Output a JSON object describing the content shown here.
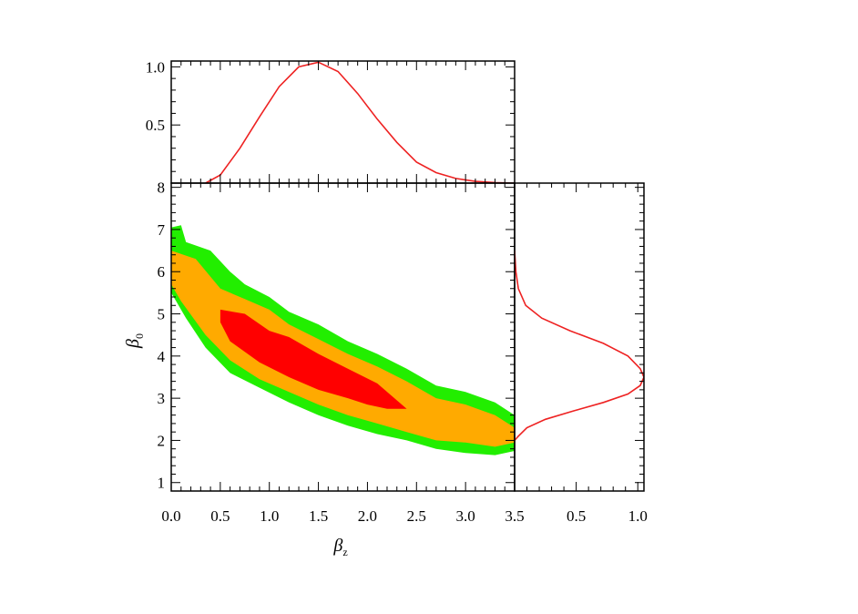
{
  "chart_data": [
    {
      "panel": "top-marginal",
      "type": "line",
      "xlim": [
        0,
        3.5
      ],
      "ylim": [
        0,
        1.05
      ],
      "yticks": [
        {
          "value": 0.5,
          "label": "0.5"
        },
        {
          "value": 1.0,
          "label": "1.0"
        }
      ],
      "series": [
        {
          "color": "#ee2222",
          "x": [
            0.35,
            0.5,
            0.7,
            0.9,
            1.1,
            1.3,
            1.5,
            1.7,
            1.9,
            2.1,
            2.3,
            2.5,
            2.7,
            2.9,
            3.1,
            3.3,
            3.5
          ],
          "y": [
            0.0,
            0.07,
            0.3,
            0.57,
            0.83,
            1.0,
            1.04,
            0.96,
            0.77,
            0.55,
            0.35,
            0.18,
            0.09,
            0.04,
            0.015,
            0.005,
            0.0
          ]
        }
      ],
      "grid": false
    },
    {
      "panel": "joint-contours",
      "type": "contour",
      "xlabel": "β",
      "xlabel_sub": "z",
      "ylabel": "β",
      "ylabel_sub": "0",
      "xlim": [
        0,
        3.5
      ],
      "ylim": [
        0.8,
        8.1
      ],
      "xticks": [
        {
          "value": 0.0,
          "label": "0.0"
        },
        {
          "value": 0.5,
          "label": "0.5"
        },
        {
          "value": 1.0,
          "label": "1.0"
        },
        {
          "value": 1.5,
          "label": "1.5"
        },
        {
          "value": 2.0,
          "label": "2.0"
        },
        {
          "value": 2.5,
          "label": "2.5"
        },
        {
          "value": 3.0,
          "label": "3.0"
        },
        {
          "value": 3.5,
          "label": "3.5"
        }
      ],
      "yticks": [
        {
          "value": 1,
          "label": "1"
        },
        {
          "value": 2,
          "label": "2"
        },
        {
          "value": 3,
          "label": "3"
        },
        {
          "value": 4,
          "label": "4"
        },
        {
          "value": 5,
          "label": "5"
        },
        {
          "value": 6,
          "label": "6"
        },
        {
          "value": 7,
          "label": "7"
        },
        {
          "value": 8,
          "label": "8"
        }
      ],
      "regions": [
        {
          "level": "outer",
          "color": "#22ee00",
          "points": [
            [
              0,
              7.05
            ],
            [
              0.1,
              7.1
            ],
            [
              0.15,
              6.7
            ],
            [
              0.4,
              6.5
            ],
            [
              0.6,
              6.0
            ],
            [
              0.75,
              5.7
            ],
            [
              1.0,
              5.4
            ],
            [
              1.2,
              5.05
            ],
            [
              1.5,
              4.75
            ],
            [
              1.8,
              4.35
            ],
            [
              2.1,
              4.05
            ],
            [
              2.4,
              3.7
            ],
            [
              2.7,
              3.3
            ],
            [
              3.0,
              3.15
            ],
            [
              3.3,
              2.9
            ],
            [
              3.5,
              2.6
            ],
            [
              3.5,
              1.75
            ],
            [
              3.3,
              1.65
            ],
            [
              3.0,
              1.7
            ],
            [
              2.7,
              1.8
            ],
            [
              2.4,
              2.0
            ],
            [
              2.1,
              2.15
            ],
            [
              1.8,
              2.35
            ],
            [
              1.5,
              2.6
            ],
            [
              1.2,
              2.9
            ],
            [
              0.9,
              3.25
            ],
            [
              0.6,
              3.6
            ],
            [
              0.35,
              4.2
            ],
            [
              0.15,
              4.9
            ],
            [
              0,
              5.5
            ]
          ]
        },
        {
          "level": "middle",
          "color": "#ffaa00",
          "points": [
            [
              0,
              6.5
            ],
            [
              0.25,
              6.3
            ],
            [
              0.5,
              5.6
            ],
            [
              0.75,
              5.35
            ],
            [
              1.0,
              5.1
            ],
            [
              1.2,
              4.75
            ],
            [
              1.5,
              4.4
            ],
            [
              1.8,
              4.05
            ],
            [
              2.1,
              3.75
            ],
            [
              2.4,
              3.4
            ],
            [
              2.7,
              3.0
            ],
            [
              3.0,
              2.85
            ],
            [
              3.3,
              2.6
            ],
            [
              3.5,
              2.3
            ],
            [
              3.5,
              1.95
            ],
            [
              3.3,
              1.85
            ],
            [
              3.0,
              1.95
            ],
            [
              2.7,
              2.0
            ],
            [
              2.4,
              2.2
            ],
            [
              2.1,
              2.4
            ],
            [
              1.8,
              2.6
            ],
            [
              1.5,
              2.85
            ],
            [
              1.2,
              3.15
            ],
            [
              0.9,
              3.45
            ],
            [
              0.6,
              3.9
            ],
            [
              0.35,
              4.5
            ],
            [
              0.1,
              5.3
            ],
            [
              0,
              5.7
            ]
          ]
        },
        {
          "level": "inner",
          "color": "#ff0000",
          "points": [
            [
              0.5,
              5.1
            ],
            [
              0.75,
              5.0
            ],
            [
              1.0,
              4.6
            ],
            [
              1.2,
              4.45
            ],
            [
              1.5,
              4.05
            ],
            [
              1.8,
              3.7
            ],
            [
              2.1,
              3.35
            ],
            [
              2.4,
              2.75
            ],
            [
              2.2,
              2.75
            ],
            [
              2.0,
              2.85
            ],
            [
              1.8,
              3.0
            ],
            [
              1.5,
              3.2
            ],
            [
              1.2,
              3.5
            ],
            [
              0.9,
              3.85
            ],
            [
              0.6,
              4.35
            ],
            [
              0.5,
              4.8
            ]
          ]
        }
      ],
      "grid": false
    },
    {
      "panel": "right-marginal",
      "type": "line",
      "orientation": "horizontal",
      "xlim": [
        0,
        1.05
      ],
      "ylim": [
        0.8,
        8.1
      ],
      "xticks": [
        {
          "value": 0.5,
          "label": "0.5"
        },
        {
          "value": 1.0,
          "label": "1.0"
        }
      ],
      "series": [
        {
          "color": "#ee2222",
          "y": [
            6.5,
            6.0,
            5.6,
            5.2,
            4.9,
            4.6,
            4.3,
            4.0,
            3.7,
            3.5,
            3.3,
            3.1,
            2.9,
            2.7,
            2.5,
            2.3,
            2.1,
            2.0
          ],
          "x": [
            0.0,
            0.01,
            0.03,
            0.09,
            0.22,
            0.45,
            0.72,
            0.92,
            1.02,
            1.05,
            1.02,
            0.92,
            0.72,
            0.48,
            0.25,
            0.1,
            0.03,
            0.0
          ]
        }
      ],
      "grid": false
    }
  ]
}
